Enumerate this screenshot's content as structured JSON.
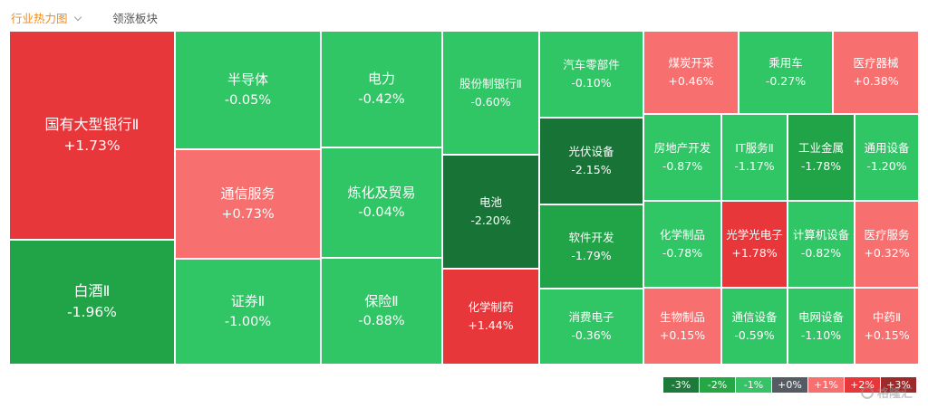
{
  "tabs": {
    "active": "行业热力图",
    "inactive": "领涨板块"
  },
  "colors": {
    "up_strong": "#e8373a",
    "up_light": "#f86f6f",
    "down_light": "#30c565",
    "down_mid": "#20a447",
    "down_strong": "#187436",
    "legend": [
      "#1e7a3a",
      "#26a746",
      "#37c267",
      "#555a63",
      "#f86f6f",
      "#e8373a",
      "#9d2a2a"
    ]
  },
  "chart_data": {
    "type": "heatmap",
    "title": "",
    "sectors": [
      {
        "name": "国有大型银行Ⅱ",
        "change": 1.73
      },
      {
        "name": "白酒Ⅱ",
        "change": -1.96
      },
      {
        "name": "半导体",
        "change": -0.05
      },
      {
        "name": "通信服务",
        "change": 0.73
      },
      {
        "name": "证券Ⅱ",
        "change": -1.0
      },
      {
        "name": "电力",
        "change": -0.42
      },
      {
        "name": "炼化及贸易",
        "change": -0.04
      },
      {
        "name": "保险Ⅱ",
        "change": -0.88
      },
      {
        "name": "股份制银行Ⅱ",
        "change": -0.6
      },
      {
        "name": "电池",
        "change": -2.2
      },
      {
        "name": "化学制药",
        "change": 1.44
      },
      {
        "name": "汽车零部件",
        "change": -0.1
      },
      {
        "name": "光伏设备",
        "change": -2.15
      },
      {
        "name": "软件开发",
        "change": -1.79
      },
      {
        "name": "消费电子",
        "change": -0.36
      },
      {
        "name": "煤炭开采",
        "change": 0.46
      },
      {
        "name": "乘用车",
        "change": -0.27
      },
      {
        "name": "医疗器械",
        "change": 0.38
      },
      {
        "name": "房地产开发",
        "change": -0.87
      },
      {
        "name": "IT服务Ⅱ",
        "change": -1.17
      },
      {
        "name": "工业金属",
        "change": -1.78
      },
      {
        "name": "通用设备",
        "change": -1.2
      },
      {
        "name": "化学制品",
        "change": -0.78
      },
      {
        "name": "光学光电子",
        "change": 1.78
      },
      {
        "name": "计算机设备",
        "change": -0.82
      },
      {
        "name": "医疗服务",
        "change": 0.32
      },
      {
        "name": "生物制品",
        "change": 0.15
      },
      {
        "name": "通信设备",
        "change": -0.59
      },
      {
        "name": "电网设备",
        "change": -1.1
      },
      {
        "name": "中药Ⅱ",
        "change": 0.15
      }
    ],
    "legend": [
      "-3%",
      "-2%",
      "-1%",
      "+0%",
      "+1%",
      "+2%",
      "+3%"
    ]
  },
  "watermark": "格隆汇"
}
